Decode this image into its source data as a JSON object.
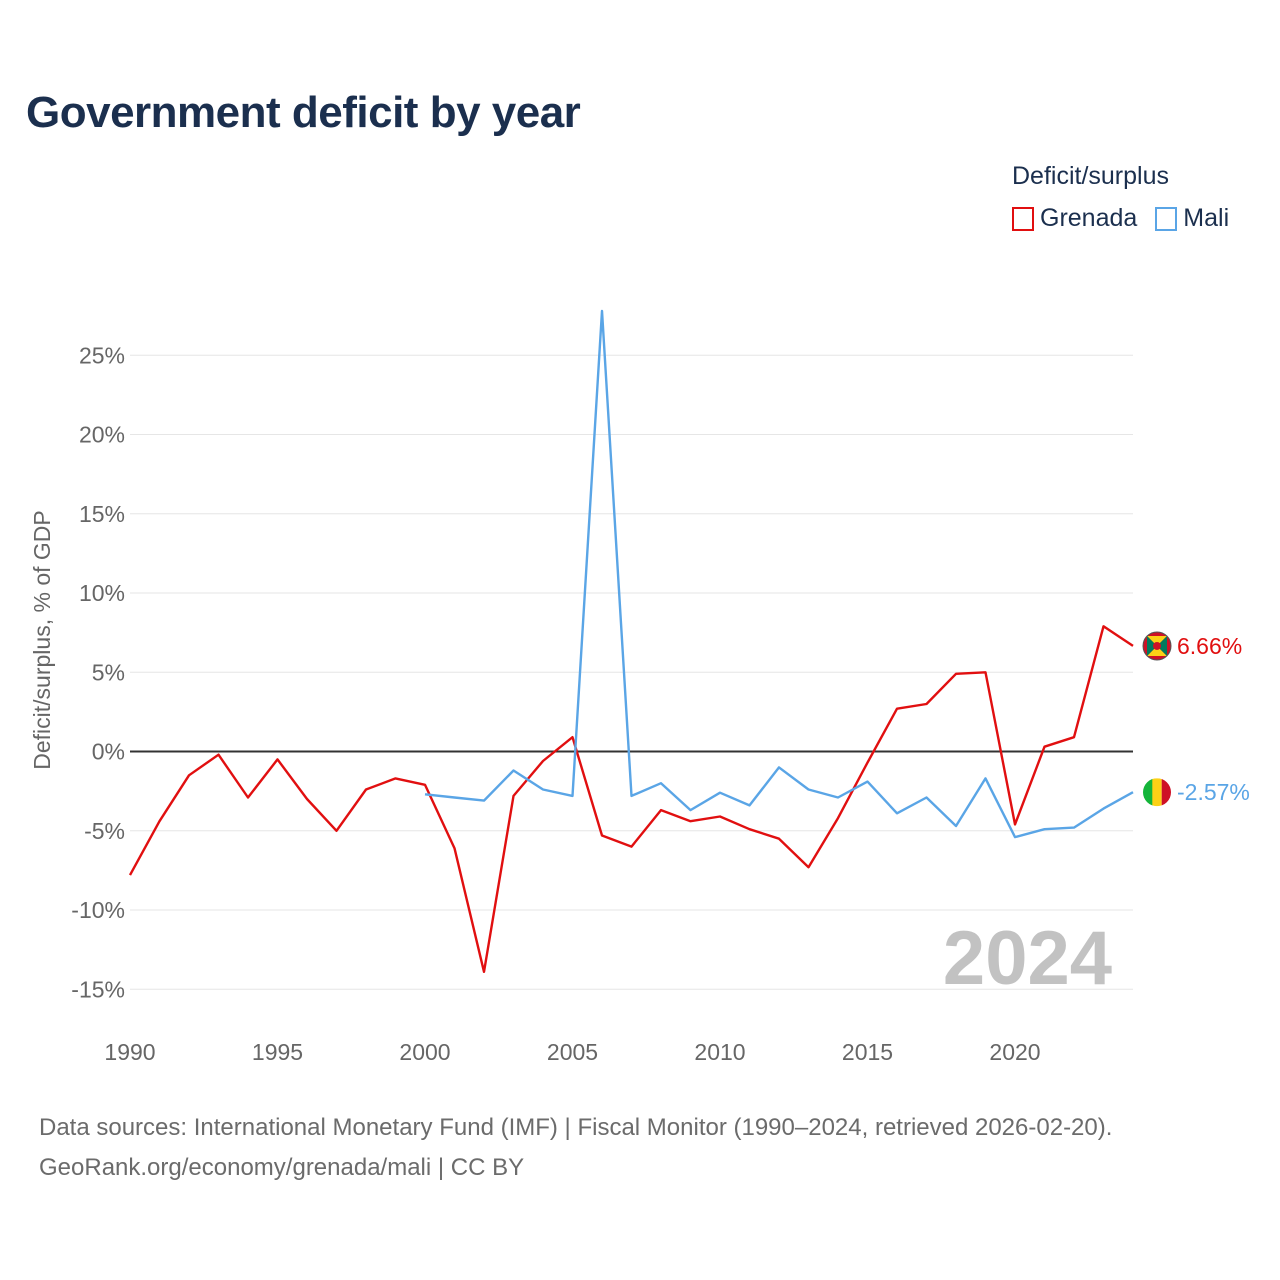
{
  "title": "Government deficit by year",
  "legend": {
    "title": "Deficit/surplus",
    "items": [
      {
        "label": "Grenada",
        "color": "#e10f10"
      },
      {
        "label": "Mali",
        "color": "#5aa5e6"
      }
    ]
  },
  "watermark_year": "2024",
  "source": {
    "line1": "Data sources: International Monetary Fund (IMF) | Fiscal Monitor (1990–2024, retrieved 2026-02-20).",
    "line2": "GeoRank.org/economy/grenada/mali | CC BY"
  },
  "chart_data": {
    "type": "line",
    "title": "Government deficit by year",
    "xlabel": "",
    "ylabel": "Deficit/surplus, % of GDP",
    "xlim": [
      1990,
      2024
    ],
    "ylim": [
      -17,
      30
    ],
    "x_ticks": [
      1990,
      1995,
      2000,
      2005,
      2010,
      2015,
      2020
    ],
    "x_tick_labels": [
      "1990",
      "1995",
      "2000",
      "2005",
      "2010",
      "2015",
      "2020"
    ],
    "y_ticks": [
      -15,
      -10,
      -5,
      0,
      5,
      10,
      15,
      20,
      25
    ],
    "y_tick_labels": [
      "-15%",
      "-10%",
      "-5%",
      "0%",
      "5%",
      "10%",
      "15%",
      "20%",
      "25%"
    ],
    "grid": true,
    "zero_line": true,
    "series": [
      {
        "name": "Grenada",
        "color": "#e10f10",
        "end_label": "6.66%",
        "flag": "grenada-flag",
        "x": [
          1990,
          1991,
          1992,
          1993,
          1994,
          1995,
          1996,
          1997,
          1998,
          1999,
          2000,
          2001,
          2002,
          2003,
          2004,
          2005,
          2006,
          2007,
          2008,
          2009,
          2010,
          2011,
          2012,
          2013,
          2014,
          2015,
          2016,
          2017,
          2018,
          2019,
          2020,
          2021,
          2022,
          2023,
          2024
        ],
        "values": [
          -7.8,
          -4.4,
          -1.5,
          -0.2,
          -2.9,
          -0.5,
          -3.0,
          -5.0,
          -2.4,
          -1.7,
          -2.1,
          -6.1,
          -13.9,
          -2.8,
          -0.6,
          0.9,
          -5.3,
          -6.0,
          -3.7,
          -4.4,
          -4.1,
          -4.9,
          -5.5,
          -7.3,
          -4.2,
          -0.7,
          2.7,
          3.0,
          4.9,
          5.0,
          -4.6,
          0.3,
          0.9,
          7.9,
          6.66
        ]
      },
      {
        "name": "Mali",
        "color": "#5aa5e6",
        "end_label": "-2.57%",
        "flag": "mali-flag",
        "x": [
          2000,
          2001,
          2002,
          2003,
          2004,
          2005,
          2006,
          2007,
          2008,
          2009,
          2010,
          2011,
          2012,
          2013,
          2014,
          2015,
          2016,
          2017,
          2018,
          2019,
          2020,
          2021,
          2022,
          2023,
          2024
        ],
        "values": [
          -2.7,
          -2.9,
          -3.1,
          -1.2,
          -2.4,
          -2.8,
          27.8,
          -2.8,
          -2.0,
          -3.7,
          -2.6,
          -3.4,
          -1.0,
          -2.4,
          -2.9,
          -1.9,
          -3.9,
          -2.9,
          -4.7,
          -1.7,
          -5.4,
          -4.9,
          -4.8,
          -3.6,
          -2.57
        ]
      }
    ]
  }
}
